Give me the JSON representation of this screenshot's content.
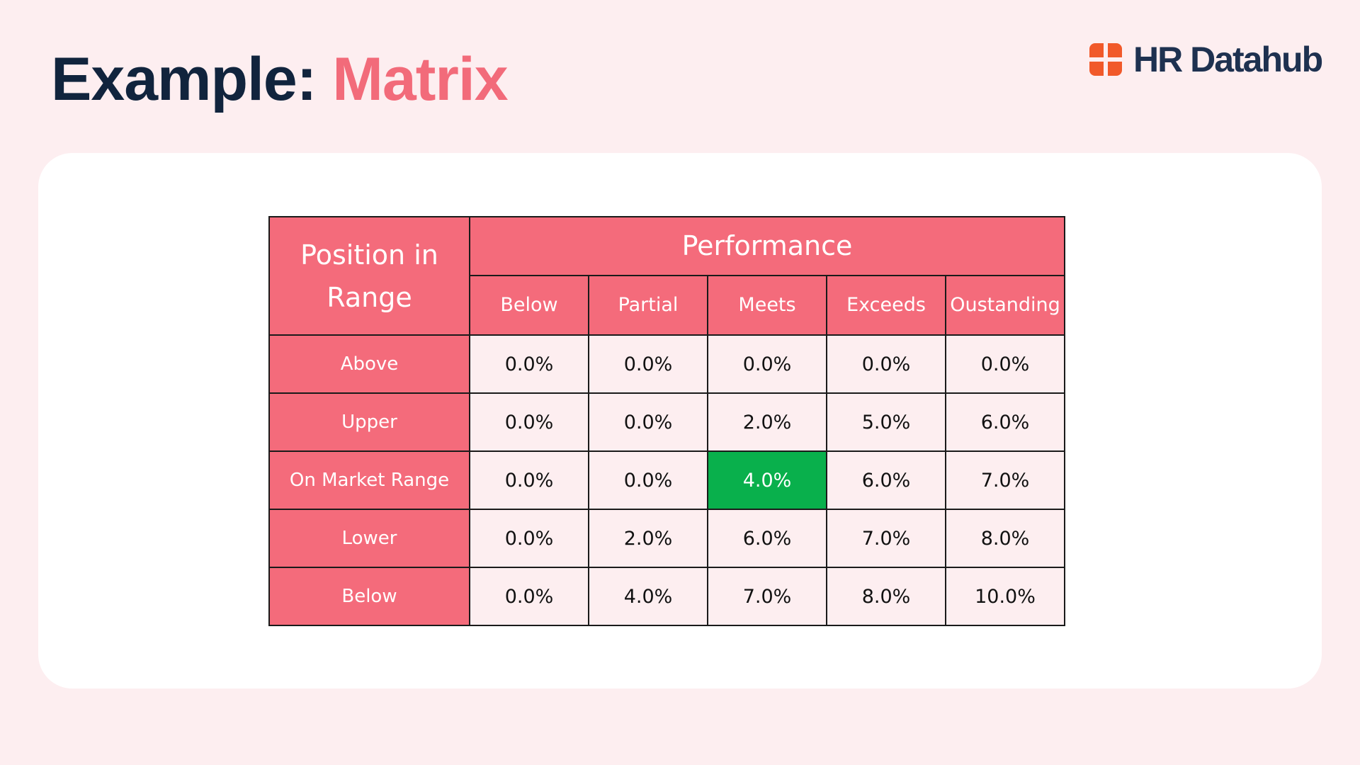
{
  "header": {
    "title_prefix": "Example:",
    "title_accent": "Matrix"
  },
  "logo": {
    "text": "HR Datahub",
    "icon": "hr-datahub-logo-icon",
    "color": "#1e3150",
    "mark_color": "#f1592a"
  },
  "colors": {
    "background": "#fdeef0",
    "header_fill": "#f46b7b",
    "cell_fill": "#fdeef0",
    "highlight_fill": "#09b04c",
    "title_dark": "#11243d",
    "title_accent": "#f26b7a"
  },
  "matrix": {
    "corner_line1": "Position in",
    "corner_line2": "Range",
    "group_header": "Performance",
    "columns": [
      "Below",
      "Partial",
      "Meets",
      "Exceeds",
      "Oustanding"
    ],
    "rows": [
      {
        "label": "Above",
        "values": [
          "0.0%",
          "0.0%",
          "0.0%",
          "0.0%",
          "0.0%"
        ]
      },
      {
        "label": "Upper",
        "values": [
          "0.0%",
          "0.0%",
          "2.0%",
          "5.0%",
          "6.0%"
        ]
      },
      {
        "label": "On Market Range",
        "values": [
          "0.0%",
          "0.0%",
          "4.0%",
          "6.0%",
          "7.0%"
        ]
      },
      {
        "label": "Lower",
        "values": [
          "0.0%",
          "2.0%",
          "6.0%",
          "7.0%",
          "8.0%"
        ]
      },
      {
        "label": "Below",
        "values": [
          "0.0%",
          "4.0%",
          "7.0%",
          "8.0%",
          "10.0%"
        ]
      }
    ],
    "highlighted_cell": {
      "row": "On Market Range",
      "column": "Meets"
    }
  }
}
